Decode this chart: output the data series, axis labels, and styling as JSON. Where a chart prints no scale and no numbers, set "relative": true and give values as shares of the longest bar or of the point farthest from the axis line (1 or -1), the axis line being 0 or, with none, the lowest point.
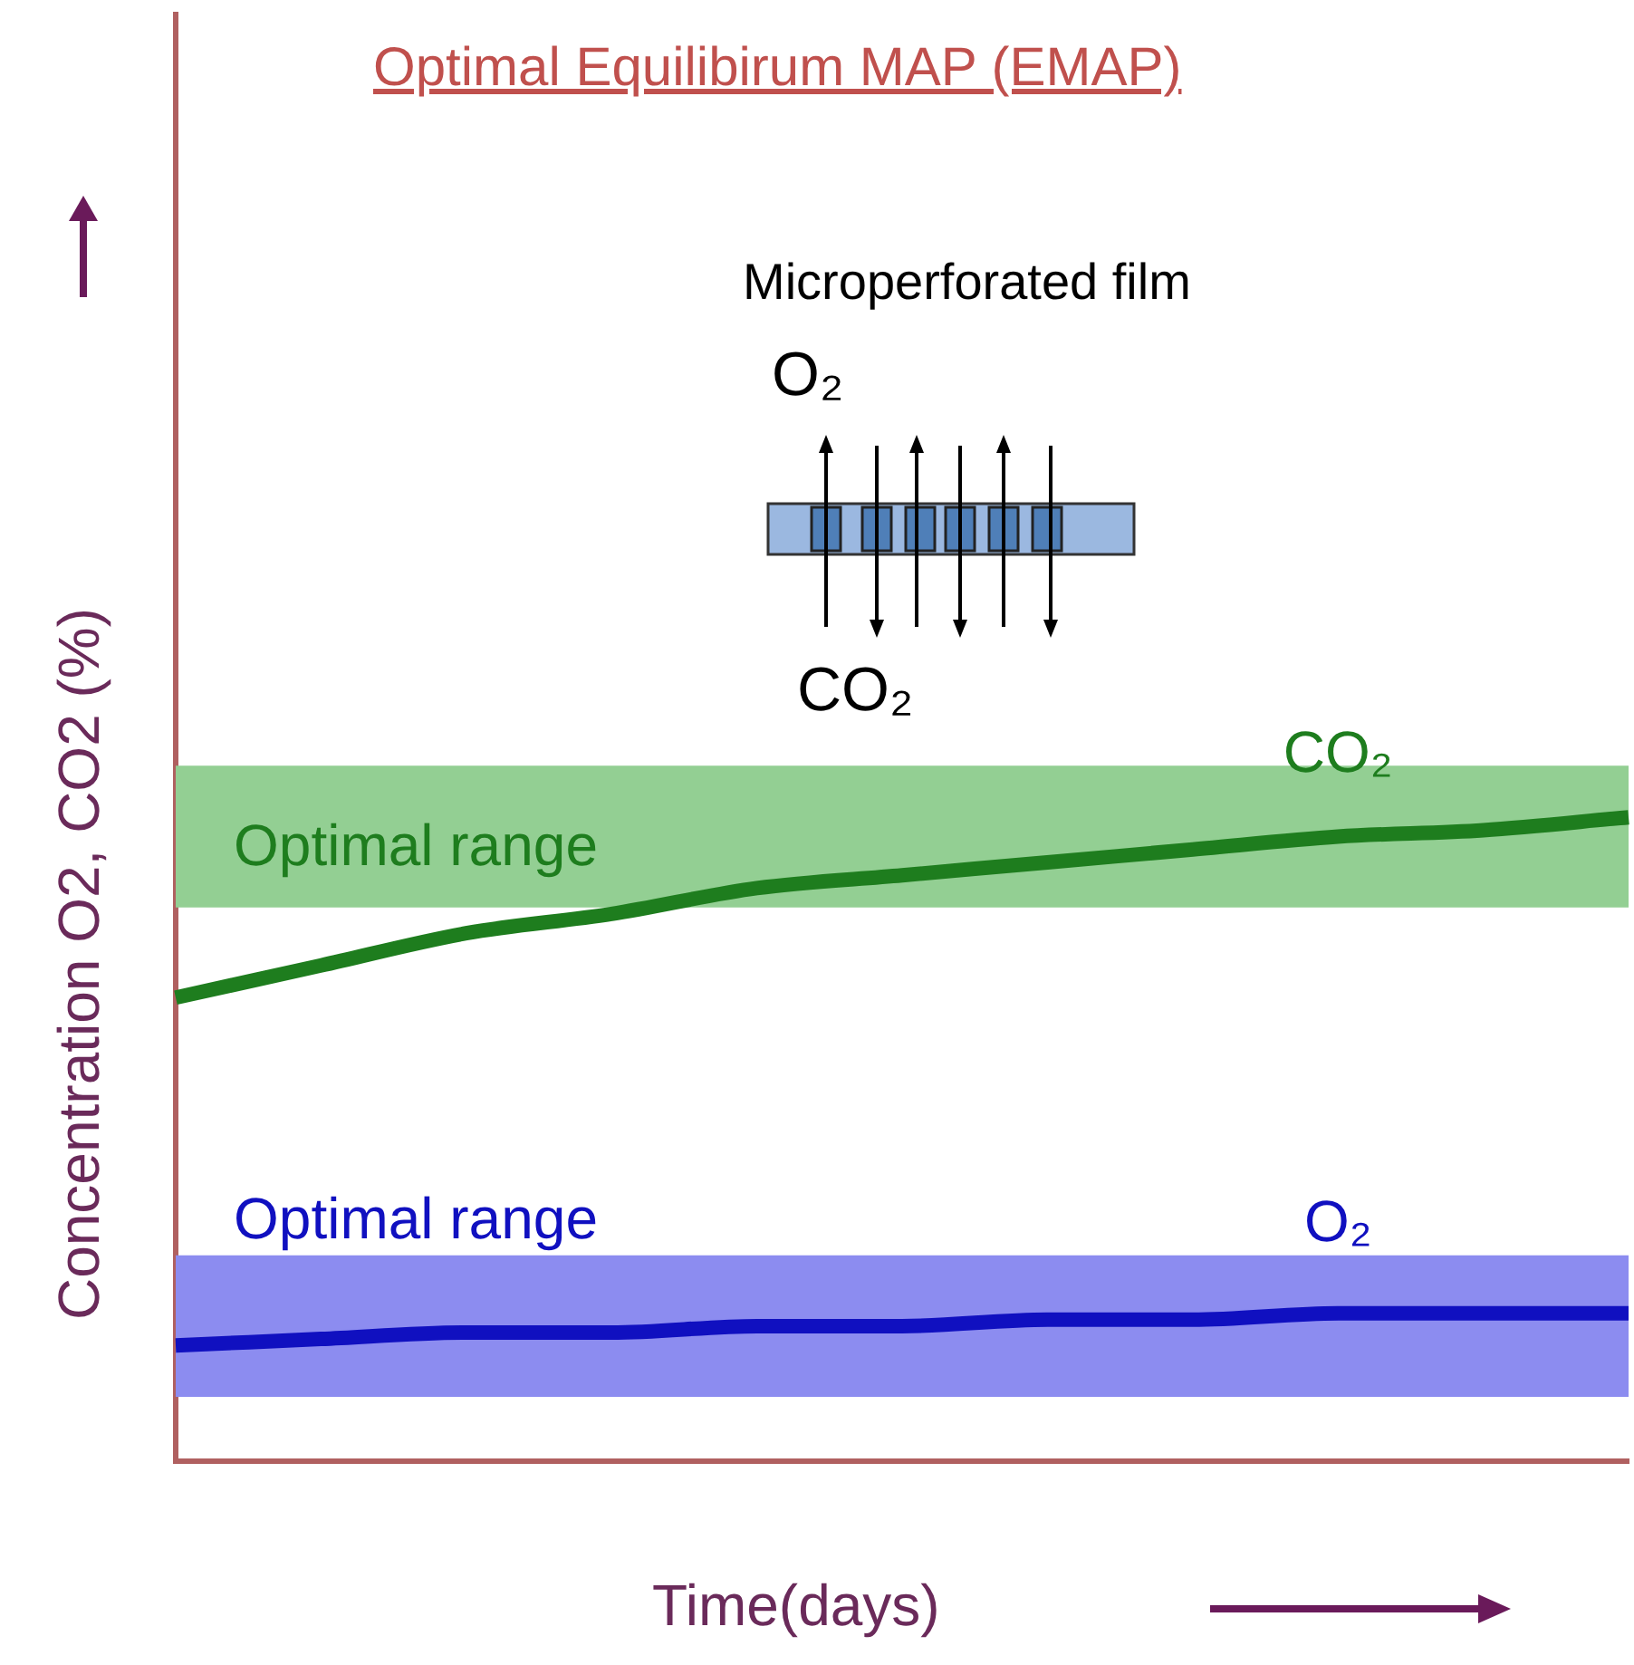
{
  "chart_data": {
    "type": "line",
    "relative": true,
    "title": "Optimal Equilibirum MAP (EMAP)",
    "xlabel": "Time(days)",
    "ylabel": "Concentration O2, CO2 (%)",
    "annotations": [
      "Microperforated film",
      "O₂",
      "CO₂"
    ],
    "categories": [
      null,
      null,
      null,
      null,
      null,
      null,
      null,
      null,
      null,
      null,
      null
    ],
    "series": [
      {
        "name": "CO₂",
        "color": "#1e7d1e",
        "values": [
          0.72,
          0.77,
          0.82,
          0.85,
          0.89,
          0.91,
          0.93,
          0.95,
          0.97,
          0.98,
          1
        ]
      },
      {
        "name": "O₂",
        "color": "#1010c0",
        "values": [
          0.18,
          0.19,
          0.2,
          0.2,
          0.21,
          0.21,
          0.22,
          0.22,
          0.23,
          0.23,
          0.23
        ]
      }
    ],
    "bands": [
      {
        "axis": "y",
        "from": 0.86,
        "to": 1.08,
        "label": "Optimal range",
        "color": "#93cf93"
      },
      {
        "axis": "y",
        "from": 0.1,
        "to": 0.32,
        "label": "Optimal range",
        "color": "#8c8cf0"
      }
    ],
    "legend": false,
    "grid": false,
    "marker": "none",
    "line_style": "solid"
  }
}
